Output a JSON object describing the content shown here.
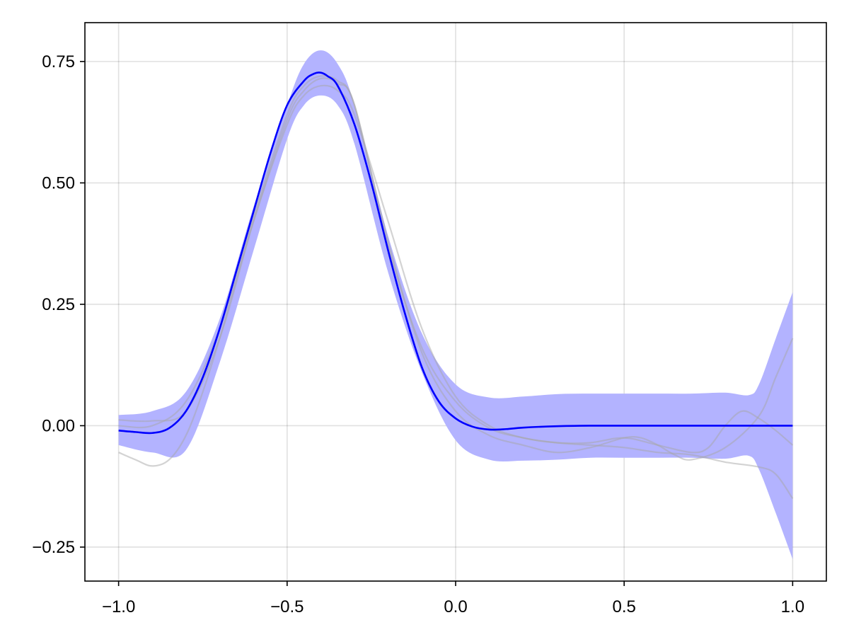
{
  "chart_data": {
    "type": "line",
    "title": "",
    "xlabel": "",
    "ylabel": "",
    "xlim": [
      -1.1,
      1.1
    ],
    "ylim": [
      -0.32,
      0.83
    ],
    "grid": true,
    "legend": "none",
    "x_ticks": [
      {
        "value": -1.0,
        "label": "−1.0"
      },
      {
        "value": -0.5,
        "label": "−0.5"
      },
      {
        "value": 0.0,
        "label": "0.0"
      },
      {
        "value": 0.5,
        "label": "0.5"
      },
      {
        "value": 1.0,
        "label": "1.0"
      }
    ],
    "y_ticks": [
      {
        "value": -0.25,
        "label": "−0.25"
      },
      {
        "value": 0.0,
        "label": "0.00"
      },
      {
        "value": 0.25,
        "label": "0.25"
      },
      {
        "value": 0.5,
        "label": "0.50"
      },
      {
        "value": 0.75,
        "label": "0.75"
      }
    ],
    "band": {
      "color": "#b3b3ff",
      "x": [
        -1.0,
        -0.9,
        -0.8,
        -0.7,
        -0.6,
        -0.5,
        -0.45,
        -0.4,
        -0.35,
        -0.3,
        -0.2,
        -0.1,
        0.0,
        0.1,
        0.2,
        0.3,
        0.4,
        0.5,
        0.6,
        0.7,
        0.8,
        0.87,
        0.9,
        0.95,
        1.0
      ],
      "upper": [
        0.022,
        0.03,
        0.07,
        0.22,
        0.45,
        0.66,
        0.745,
        0.773,
        0.745,
        0.66,
        0.39,
        0.19,
        0.085,
        0.058,
        0.06,
        0.065,
        0.066,
        0.066,
        0.066,
        0.066,
        0.068,
        0.063,
        0.085,
        0.18,
        0.275
      ],
      "lower": [
        -0.04,
        -0.055,
        -0.05,
        0.13,
        0.36,
        0.59,
        0.66,
        0.68,
        0.66,
        0.58,
        0.315,
        0.11,
        -0.03,
        -0.07,
        -0.072,
        -0.07,
        -0.066,
        -0.066,
        -0.066,
        -0.066,
        -0.068,
        -0.062,
        -0.09,
        -0.18,
        -0.275
      ]
    },
    "series": [
      {
        "color": "#0000ff",
        "x": [
          -1.0,
          -0.95,
          -0.9,
          -0.85,
          -0.8,
          -0.75,
          -0.7,
          -0.65,
          -0.6,
          -0.55,
          -0.5,
          -0.45,
          -0.42,
          -0.4,
          -0.38,
          -0.35,
          -0.3,
          -0.25,
          -0.2,
          -0.15,
          -0.1,
          -0.05,
          0.0,
          0.05,
          0.1,
          0.15,
          0.2,
          0.3,
          0.4,
          0.5,
          0.6,
          0.7,
          0.8,
          0.9,
          1.0
        ],
        "values": [
          -0.01,
          -0.013,
          -0.015,
          -0.005,
          0.03,
          0.1,
          0.2,
          0.32,
          0.44,
          0.56,
          0.66,
          0.71,
          0.725,
          0.727,
          0.72,
          0.7,
          0.62,
          0.5,
          0.36,
          0.23,
          0.12,
          0.05,
          0.015,
          -0.002,
          -0.008,
          -0.007,
          -0.004,
          -0.001,
          0.0,
          0.0,
          0.0,
          0.0,
          0.0,
          0.0,
          0.0
        ]
      }
    ],
    "samples": [
      {
        "color": "#a8a8a8",
        "x": [
          -1.0,
          -0.95,
          -0.9,
          -0.85,
          -0.8,
          -0.75,
          -0.7,
          -0.6,
          -0.5,
          -0.45,
          -0.4,
          -0.35,
          -0.3,
          -0.2,
          -0.1,
          0.0,
          0.1,
          0.2,
          0.3,
          0.4,
          0.5,
          0.6,
          0.7,
          0.8,
          0.9,
          0.95,
          1.0
        ],
        "values": [
          -0.055,
          -0.07,
          -0.083,
          -0.07,
          -0.02,
          0.07,
          0.18,
          0.42,
          0.62,
          0.68,
          0.7,
          0.69,
          0.64,
          0.42,
          0.2,
          0.06,
          0.0,
          -0.025,
          -0.035,
          -0.04,
          -0.045,
          -0.055,
          -0.06,
          -0.075,
          -0.085,
          -0.1,
          -0.15
        ]
      },
      {
        "color": "#a8a8a8",
        "x": [
          -1.0,
          -0.9,
          -0.8,
          -0.7,
          -0.6,
          -0.5,
          -0.45,
          -0.4,
          -0.35,
          -0.3,
          -0.2,
          -0.1,
          0.0,
          0.1,
          0.2,
          0.3,
          0.4,
          0.5,
          0.6,
          0.7,
          0.75,
          0.8,
          0.85,
          0.9,
          0.95,
          1.0
        ],
        "values": [
          0.012,
          0.01,
          0.03,
          0.18,
          0.42,
          0.63,
          0.69,
          0.715,
          0.705,
          0.66,
          0.37,
          0.16,
          0.05,
          -0.005,
          -0.025,
          -0.035,
          -0.035,
          -0.025,
          -0.04,
          -0.055,
          -0.045,
          0.0,
          0.03,
          0.015,
          -0.01,
          -0.04
        ]
      },
      {
        "color": "#a8a8a8",
        "x": [
          -1.0,
          -0.9,
          -0.8,
          -0.7,
          -0.6,
          -0.5,
          -0.45,
          -0.4,
          -0.35,
          -0.3,
          -0.2,
          -0.1,
          0.0,
          0.1,
          0.2,
          0.3,
          0.4,
          0.5,
          0.55,
          0.6,
          0.65,
          0.7,
          0.8,
          0.9,
          0.95,
          1.0
        ],
        "values": [
          0.0,
          0.0,
          0.05,
          0.2,
          0.43,
          0.64,
          0.7,
          0.72,
          0.71,
          0.66,
          0.38,
          0.15,
          0.03,
          -0.02,
          -0.04,
          -0.055,
          -0.045,
          -0.025,
          -0.025,
          -0.04,
          -0.06,
          -0.07,
          -0.045,
          0.02,
          0.1,
          0.18
        ]
      }
    ]
  }
}
